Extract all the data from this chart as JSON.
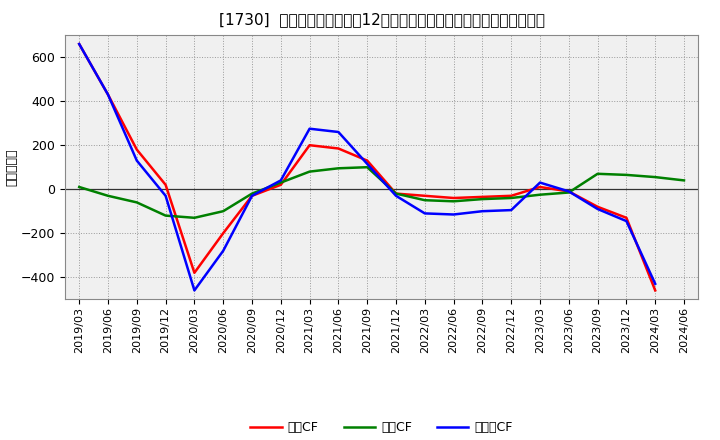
{
  "title": "[1730]  キャッシュフローの12か月移動合計の対前年同期増減額の推移",
  "ylabel": "（百万円）",
  "x_labels": [
    "2019/03",
    "2019/06",
    "2019/09",
    "2019/12",
    "2020/03",
    "2020/06",
    "2020/09",
    "2020/12",
    "2021/03",
    "2021/06",
    "2021/09",
    "2021/12",
    "2022/03",
    "2022/06",
    "2022/09",
    "2022/12",
    "2023/03",
    "2023/06",
    "2023/09",
    "2023/12",
    "2024/03",
    "2024/06"
  ],
  "eigyo_cf": [
    660,
    430,
    180,
    20,
    -380,
    -200,
    -30,
    20,
    200,
    185,
    130,
    -20,
    -30,
    -40,
    -35,
    -30,
    10,
    -10,
    -80,
    -130,
    -460,
    null
  ],
  "toshi_cf": [
    10,
    -30,
    -60,
    -120,
    -130,
    -100,
    -20,
    30,
    80,
    95,
    100,
    -20,
    -50,
    -55,
    -45,
    -40,
    -25,
    -15,
    70,
    65,
    55,
    40
  ],
  "free_cf": [
    660,
    430,
    130,
    -30,
    -460,
    -280,
    -30,
    40,
    275,
    260,
    115,
    -30,
    -110,
    -115,
    -100,
    -95,
    30,
    -10,
    -90,
    -145,
    -430,
    null
  ],
  "legend_labels": [
    "営業CF",
    "投資CF",
    "フリーCF"
  ],
  "line_colors": [
    "#ff0000",
    "#008000",
    "#0000ff"
  ],
  "ylim": [
    -500,
    700
  ],
  "yticks": [
    -400,
    -200,
    0,
    200,
    400,
    600
  ],
  "background_color": "#ffffff",
  "plot_bg_color": "#f0f0f0",
  "grid_color": "#999999",
  "title_fontsize": 11,
  "axis_fontsize": 8,
  "legend_fontsize": 9
}
